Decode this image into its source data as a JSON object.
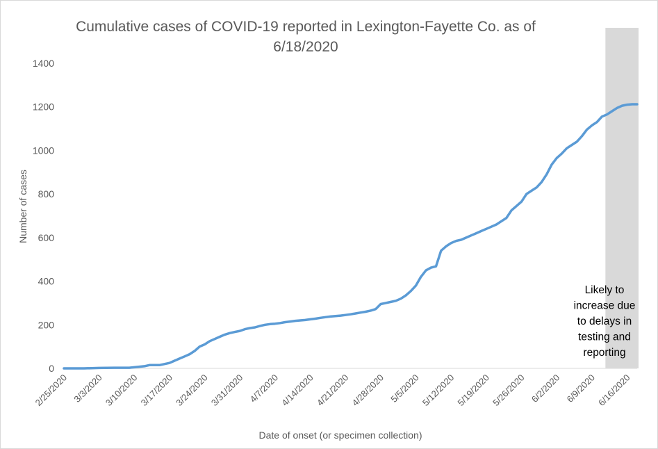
{
  "chart_data": {
    "type": "line",
    "title": "Cumulative cases of COVID-19 reported in Lexington-Fayette Co.  as of 6/18/2020",
    "xlabel": "Date of onset (or specimen collection)",
    "ylabel": "Number of cases",
    "ylim": [
      0,
      1400
    ],
    "yticks": [
      0,
      200,
      400,
      600,
      800,
      1000,
      1200,
      1400
    ],
    "xlim": [
      "2020-02-25",
      "2020-06-18"
    ],
    "xtick_labels": [
      "2/25/2020",
      "3/3/2020",
      "3/10/2020",
      "3/17/2020",
      "3/24/2020",
      "3/31/2020",
      "4/7/2020",
      "4/14/2020",
      "4/21/2020",
      "4/28/2020",
      "5/5/2020",
      "5/12/2020",
      "5/19/2020",
      "5/26/2020",
      "6/2/2020",
      "6/9/2020",
      "6/16/2020"
    ],
    "grid": false,
    "legend": "none",
    "series": [
      {
        "color": "#5b9bd5",
        "x": [
          "2020-02-25",
          "2020-02-29",
          "2020-03-03",
          "2020-03-06",
          "2020-03-09",
          "2020-03-10",
          "2020-03-12",
          "2020-03-13",
          "2020-03-15",
          "2020-03-17",
          "2020-03-18",
          "2020-03-19",
          "2020-03-20",
          "2020-03-21",
          "2020-03-22",
          "2020-03-23",
          "2020-03-24",
          "2020-03-25",
          "2020-03-26",
          "2020-03-27",
          "2020-03-28",
          "2020-03-29",
          "2020-03-30",
          "2020-03-31",
          "2020-04-01",
          "2020-04-02",
          "2020-04-03",
          "2020-04-04",
          "2020-04-05",
          "2020-04-06",
          "2020-04-07",
          "2020-04-08",
          "2020-04-09",
          "2020-04-10",
          "2020-04-11",
          "2020-04-12",
          "2020-04-13",
          "2020-04-14",
          "2020-04-15",
          "2020-04-16",
          "2020-04-17",
          "2020-04-18",
          "2020-04-19",
          "2020-04-20",
          "2020-04-21",
          "2020-04-22",
          "2020-04-23",
          "2020-04-24",
          "2020-04-25",
          "2020-04-26",
          "2020-04-27",
          "2020-04-28",
          "2020-04-29",
          "2020-04-30",
          "2020-05-01",
          "2020-05-02",
          "2020-05-03",
          "2020-05-04",
          "2020-05-05",
          "2020-05-06",
          "2020-05-07",
          "2020-05-08",
          "2020-05-09",
          "2020-05-10",
          "2020-05-11",
          "2020-05-12",
          "2020-05-13",
          "2020-05-14",
          "2020-05-15",
          "2020-05-16",
          "2020-05-17",
          "2020-05-18",
          "2020-05-19",
          "2020-05-20",
          "2020-05-21",
          "2020-05-22",
          "2020-05-23",
          "2020-05-24",
          "2020-05-25",
          "2020-05-26",
          "2020-05-27",
          "2020-05-28",
          "2020-05-29",
          "2020-05-30",
          "2020-05-31",
          "2020-06-01",
          "2020-06-02",
          "2020-06-03",
          "2020-06-04",
          "2020-06-05",
          "2020-06-06",
          "2020-06-07",
          "2020-06-08",
          "2020-06-09",
          "2020-06-10",
          "2020-06-11",
          "2020-06-12",
          "2020-06-13",
          "2020-06-14",
          "2020-06-15",
          "2020-06-16",
          "2020-06-17",
          "2020-06-18"
        ],
        "y": [
          0,
          0,
          2,
          3,
          3,
          5,
          10,
          15,
          15,
          25,
          35,
          45,
          55,
          65,
          80,
          100,
          110,
          125,
          135,
          145,
          155,
          162,
          167,
          172,
          180,
          185,
          188,
          195,
          200,
          203,
          205,
          208,
          212,
          215,
          218,
          220,
          222,
          225,
          228,
          232,
          235,
          238,
          240,
          242,
          245,
          248,
          252,
          256,
          260,
          265,
          272,
          295,
          300,
          305,
          310,
          320,
          335,
          355,
          380,
          420,
          450,
          462,
          468,
          540,
          560,
          575,
          585,
          590,
          600,
          610,
          620,
          630,
          640,
          650,
          660,
          675,
          690,
          725,
          745,
          765,
          800,
          815,
          830,
          855,
          890,
          935,
          965,
          985,
          1010,
          1025,
          1040,
          1065,
          1095,
          1115,
          1130,
          1155,
          1165,
          1180,
          1195,
          1205,
          1210,
          1212,
          1212
        ]
      }
    ],
    "shaded_region": {
      "x_start": "2020-06-11",
      "x_end": "2020-06-18",
      "color": "#d9d9d9",
      "label": [
        "Likely to",
        "increase due",
        "to delays in",
        "testing and",
        "reporting"
      ]
    }
  }
}
